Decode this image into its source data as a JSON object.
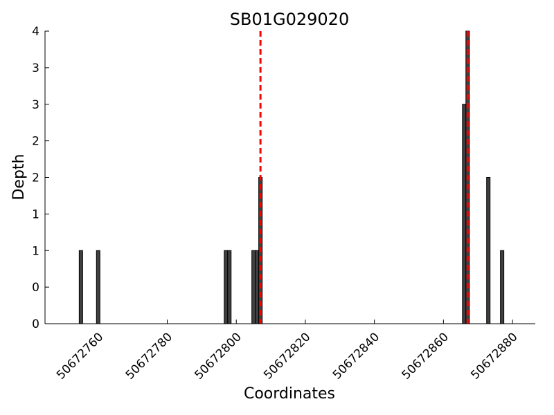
{
  "chart_data": {
    "type": "bar",
    "title": "SB01G029020",
    "x_label": "Coordinates",
    "y_label": "Depth",
    "x": [
      50672755,
      50672760,
      50672797,
      50672798,
      50672805,
      50672806,
      50672807,
      50672866,
      50672867,
      50672873,
      50672877
    ],
    "values": [
      1,
      1,
      1,
      1,
      1,
      1,
      2,
      3,
      4,
      2,
      1
    ],
    "color": "#404040",
    "xlim": [
      50672744.6,
      50672886.6
    ],
    "xticks": [
      50672760,
      50672780,
      50672800,
      50672820,
      50672840,
      50672860,
      50672880
    ],
    "ylim": [
      0,
      4
    ],
    "yticks": [
      {
        "value": 0,
        "label": "0"
      },
      {
        "value": 0.5,
        "label": "0"
      },
      {
        "value": 1,
        "label": "1"
      },
      {
        "value": 1.5,
        "label": "1"
      },
      {
        "value": 2,
        "label": "2"
      },
      {
        "value": 2.5,
        "label": "2"
      },
      {
        "value": 3,
        "label": "3"
      },
      {
        "value": 3.5,
        "label": "3"
      },
      {
        "value": 4,
        "label": "4"
      }
    ],
    "vlines": [
      50672807,
      50672867
    ],
    "vline_color": "#ff0000"
  }
}
